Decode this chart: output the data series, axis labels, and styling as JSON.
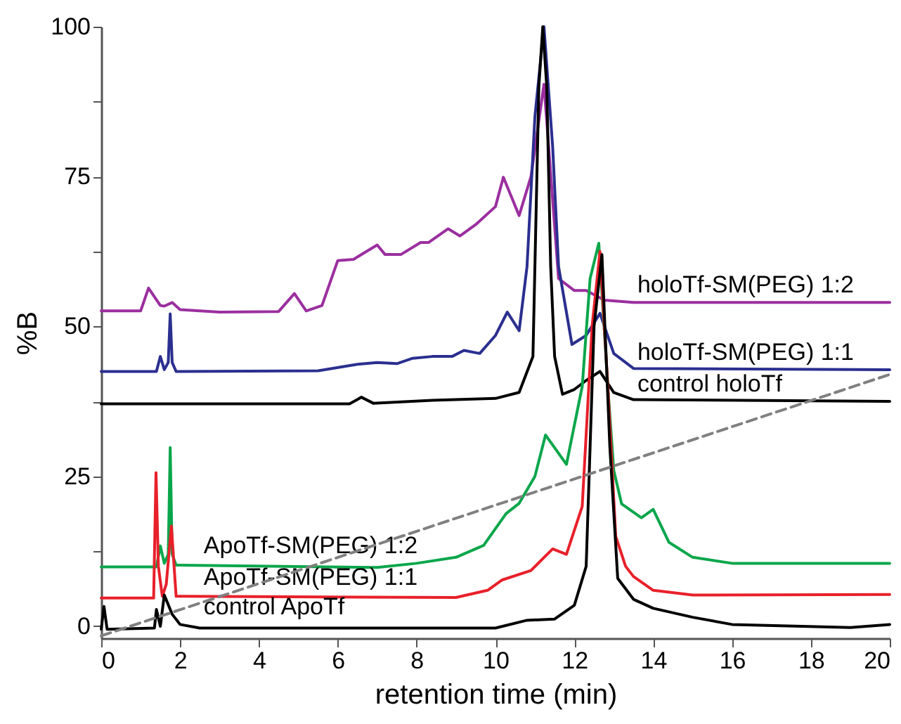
{
  "chart_data": {
    "type": "line",
    "xlabel": "retention time (min)",
    "ylabel": "%B",
    "xlim": [
      0,
      20
    ],
    "ylim": [
      -2,
      100
    ],
    "xticks": [
      0,
      2,
      4,
      6,
      8,
      10,
      12,
      14,
      16,
      18,
      20
    ],
    "yticks": [
      0,
      {
        "value": 12.5,
        "label": null
      },
      25,
      {
        "value": 37.5,
        "label": null
      },
      50,
      {
        "value": 62.5,
        "label": null
      },
      75,
      {
        "value": 87.5,
        "label": null
      },
      100
    ],
    "grid": false,
    "marker": "none",
    "line_style": "solid",
    "series": [
      {
        "name": "holoTf-SM(PEG) 1:2",
        "color": "#9b2f9f",
        "x": [
          0,
          1.0,
          1.2,
          1.5,
          1.6,
          1.8,
          2.0,
          3.0,
          4.5,
          4.9,
          5.2,
          5.6,
          6.0,
          6.4,
          7.0,
          7.2,
          7.6,
          8.1,
          8.3,
          8.8,
          9.1,
          9.5,
          10.0,
          10.2,
          10.6,
          10.9,
          11.23,
          11.6,
          12.0,
          12.3,
          12.76,
          13.5,
          20
        ],
        "values": [
          52.6,
          52.6,
          56.4,
          53.5,
          53.4,
          54,
          52.8,
          52.4,
          52.5,
          55.5,
          52.6,
          53.5,
          61,
          61.2,
          63.6,
          62,
          62,
          64,
          64,
          66.3,
          65.1,
          67,
          70,
          74.9,
          68.5,
          75,
          90.4,
          58,
          56,
          56,
          54.4,
          54,
          54
        ]
      },
      {
        "name": "holoTf-SM(PEG) 1:1",
        "color": "#2b2f8f",
        "x": [
          0,
          1.4,
          1.5,
          1.6,
          1.7,
          1.75,
          1.8,
          1.9,
          5.5,
          6.5,
          7.0,
          7.5,
          7.9,
          8.4,
          8.9,
          9.2,
          9.6,
          10.0,
          10.3,
          10.6,
          10.8,
          11.0,
          11.23,
          11.45,
          11.6,
          11.94,
          12.3,
          12.65,
          13.0,
          13.5,
          20
        ],
        "values": [
          42.5,
          42.5,
          45,
          42.8,
          44,
          52.1,
          44,
          42.5,
          42.6,
          43.7,
          44,
          43.8,
          44.7,
          45,
          45,
          46,
          45.5,
          48.5,
          52.4,
          49.3,
          60,
          85,
          100,
          80,
          60,
          47,
          48.5,
          52.2,
          45.5,
          43,
          42.8
        ]
      },
      {
        "name": "control holoTf",
        "color": "#000000",
        "x": [
          0,
          6.3,
          6.6,
          6.9,
          8.4,
          10.0,
          10.6,
          10.95,
          11.0,
          11.1,
          11.2,
          11.3,
          11.4,
          11.5,
          11.7,
          12.0,
          12.3,
          12.65,
          13.0,
          13.5,
          20
        ],
        "values": [
          37.1,
          37.1,
          38.2,
          37.2,
          37.7,
          38,
          39,
          45,
          60,
          90,
          100,
          90,
          60,
          45,
          38.7,
          39.5,
          41,
          42.5,
          39,
          37.8,
          37.5
        ]
      },
      {
        "name": "ApoTf-SM(PEG) 1:2",
        "color": "#0aa64b",
        "x": [
          0,
          1.4,
          1.5,
          1.6,
          1.7,
          1.75,
          1.8,
          1.9,
          7.0,
          8.0,
          9.0,
          9.7,
          10.27,
          10.6,
          11.0,
          11.27,
          11.8,
          12.2,
          12.4,
          12.62,
          12.85,
          13.0,
          13.2,
          13.7,
          14.0,
          14.4,
          15.0,
          16.0,
          20
        ],
        "values": [
          9.9,
          9.9,
          13.4,
          10.5,
          12,
          29.8,
          12,
          10.2,
          9.8,
          10.5,
          11.5,
          13.5,
          18.8,
          20.5,
          25,
          31.9,
          27,
          40,
          58,
          63.9,
          40,
          26,
          20.4,
          18.1,
          19.5,
          14,
          11.5,
          10.5,
          10.5
        ]
      },
      {
        "name": "ApoTf-SM(PEG) 1:1",
        "color": "#e8202a",
        "x": [
          0,
          1.33,
          1.39,
          1.45,
          1.55,
          1.65,
          1.78,
          1.9,
          9.0,
          9.8,
          10.16,
          10.9,
          11.45,
          11.8,
          12.2,
          12.45,
          12.65,
          12.85,
          13.05,
          13.3,
          13.5,
          14.0,
          15.0,
          20
        ],
        "values": [
          4.7,
          4.7,
          25.6,
          10,
          5,
          7,
          16.7,
          5,
          4.8,
          6,
          7.7,
          9.3,
          12.9,
          12,
          20,
          50,
          62.5,
          40,
          15,
          10,
          8.3,
          6,
          5.2,
          5.3
        ]
      },
      {
        "name": "control ApoTf",
        "color": "#000000",
        "x": [
          0,
          0.07,
          0.15,
          1.35,
          1.4,
          1.5,
          1.6,
          1.8,
          2.0,
          2.5,
          10.0,
          10.8,
          11.5,
          12.0,
          12.3,
          12.5,
          12.7,
          12.9,
          13.1,
          13.5,
          14.0,
          15.0,
          16.0,
          19.0,
          20
        ],
        "values": [
          -0.5,
          3.3,
          -0.5,
          -0.3,
          2.8,
          0,
          5.2,
          2,
          0.3,
          -0.3,
          -0.3,
          1,
          1.2,
          3.5,
          10,
          50,
          62,
          30,
          8,
          4.5,
          3,
          1.5,
          0.3,
          -0.2,
          0.3
        ]
      },
      {
        "color": "#808080",
        "line_style": "dashed",
        "x": [
          0,
          20
        ],
        "values": [
          -1.6,
          42
        ]
      }
    ]
  }
}
